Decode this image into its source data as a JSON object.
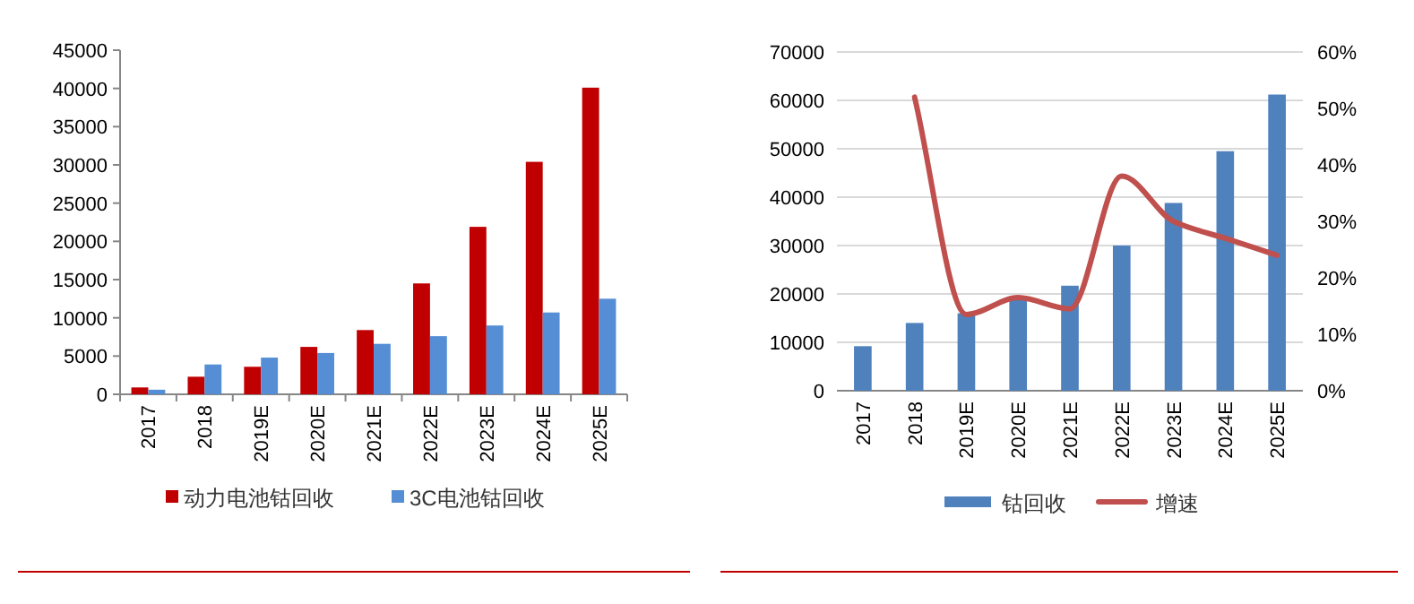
{
  "chart_data": [
    {
      "type": "bar",
      "categories": [
        "2017",
        "2018",
        "2019E",
        "2020E",
        "2021E",
        "2022E",
        "2023E",
        "2024E",
        "2025E"
      ],
      "series": [
        {
          "name": "动力电池钴回收",
          "color": "#c00000",
          "values": [
            900,
            2300,
            3600,
            6200,
            8400,
            14500,
            21900,
            30400,
            40100
          ]
        },
        {
          "name": "3C电池钴回收",
          "color": "#558ed5",
          "values": [
            600,
            3900,
            4800,
            5400,
            6600,
            7600,
            9000,
            10700,
            12500
          ]
        }
      ],
      "ylim": [
        0,
        45000
      ],
      "yticks": [
        0,
        5000,
        10000,
        15000,
        20000,
        25000,
        30000,
        35000,
        40000,
        45000
      ],
      "grid": false,
      "legend": "bottom"
    },
    {
      "type": "bar",
      "categories": [
        "2017",
        "2018",
        "2019E",
        "2020E",
        "2021E",
        "2022E",
        "2023E",
        "2024E",
        "2025E"
      ],
      "series": [
        {
          "name": "钴回收",
          "color": "#4f81bd",
          "values": [
            9200,
            14000,
            16000,
            19000,
            21700,
            30000,
            38800,
            49500,
            61200
          ]
        },
        {
          "name": "增速",
          "type": "line",
          "axis": "y2",
          "color": "#c0504d",
          "values": [
            null,
            52,
            13.5,
            16.5,
            14.5,
            38,
            30,
            27,
            24
          ]
        }
      ],
      "ylim": [
        0,
        70000
      ],
      "yticks": [
        0,
        10000,
        20000,
        30000,
        40000,
        50000,
        60000,
        70000
      ],
      "y2lim": [
        0,
        60
      ],
      "y2ticks": [
        {
          "value": 0,
          "label": "0%"
        },
        {
          "value": 10,
          "label": "10%"
        },
        {
          "value": 20,
          "label": "20%"
        },
        {
          "value": 30,
          "label": "30%"
        },
        {
          "value": 40,
          "label": "40%"
        },
        {
          "value": 50,
          "label": "50%"
        },
        {
          "value": 60,
          "label": "60%"
        }
      ],
      "grid": "y",
      "legend": "bottom"
    }
  ]
}
